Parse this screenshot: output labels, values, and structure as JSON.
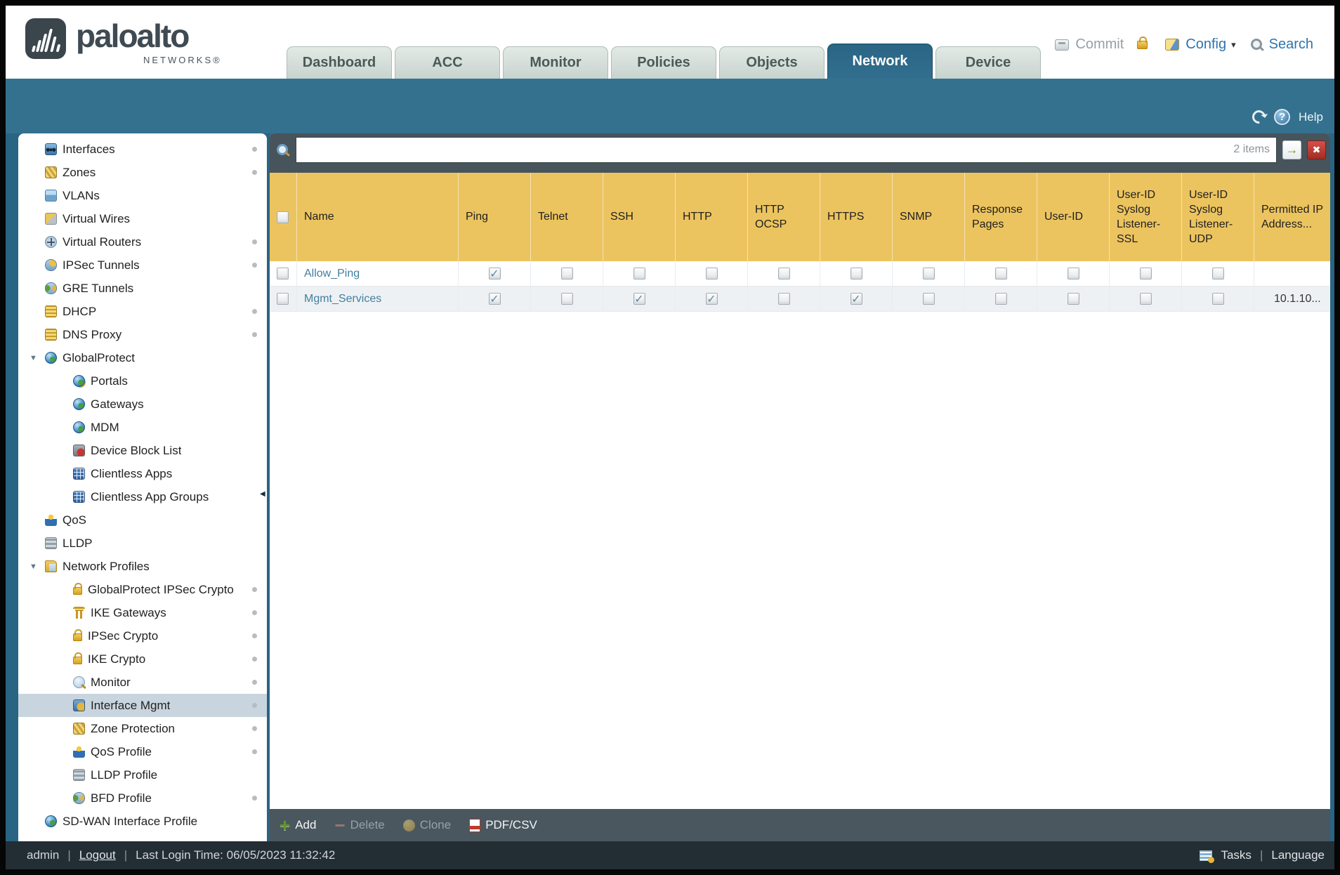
{
  "header": {
    "logo": {
      "brand": "paloalto",
      "sub": "NETWORKS®"
    },
    "tabs": [
      {
        "label": "Dashboard",
        "active": false
      },
      {
        "label": "ACC",
        "active": false
      },
      {
        "label": "Monitor",
        "active": false
      },
      {
        "label": "Policies",
        "active": false
      },
      {
        "label": "Objects",
        "active": false
      },
      {
        "label": "Network",
        "active": true
      },
      {
        "label": "Device",
        "active": false
      }
    ],
    "actions": {
      "commit": "Commit",
      "config": "Config",
      "search": "Search"
    }
  },
  "subheader": {
    "help": "Help"
  },
  "sidebar": {
    "items": [
      {
        "id": "interfaces",
        "label": "Interfaces",
        "icon": "interfaces",
        "level": 0,
        "dot": true
      },
      {
        "id": "zones",
        "label": "Zones",
        "icon": "zones",
        "level": 0,
        "dot": true
      },
      {
        "id": "vlans",
        "label": "VLANs",
        "icon": "vlans",
        "level": 0,
        "dot": false
      },
      {
        "id": "virtual-wires",
        "label": "Virtual Wires",
        "icon": "virtual-wires",
        "level": 0,
        "dot": false
      },
      {
        "id": "virtual-routers",
        "label": "Virtual Routers",
        "icon": "virtual-routers",
        "level": 0,
        "dot": true
      },
      {
        "id": "ipsec-tunnels",
        "label": "IPSec Tunnels",
        "icon": "ipsec-tunnels",
        "level": 0,
        "dot": true
      },
      {
        "id": "gre-tunnels",
        "label": "GRE Tunnels",
        "icon": "gre-tunnels",
        "level": 0,
        "dot": false
      },
      {
        "id": "dhcp",
        "label": "DHCP",
        "icon": "dhcp",
        "level": 0,
        "dot": true
      },
      {
        "id": "dns-proxy",
        "label": "DNS Proxy",
        "icon": "dns-proxy",
        "level": 0,
        "dot": true
      },
      {
        "id": "globalprotect",
        "label": "GlobalProtect",
        "icon": "globalprotect",
        "level": 0,
        "arrow": true,
        "dot": false
      },
      {
        "id": "portals",
        "label": "Portals",
        "icon": "portals",
        "level": 1,
        "dot": false
      },
      {
        "id": "gateways",
        "label": "Gateways",
        "icon": "gateways",
        "level": 1,
        "dot": false
      },
      {
        "id": "mdm",
        "label": "MDM",
        "icon": "mdm",
        "level": 1,
        "dot": false
      },
      {
        "id": "device-block-list",
        "label": "Device Block List",
        "icon": "device-block-list",
        "level": 1,
        "dot": false
      },
      {
        "id": "clientless-apps",
        "label": "Clientless Apps",
        "icon": "clientless-apps",
        "level": 1,
        "dot": false
      },
      {
        "id": "clientless-app-groups",
        "label": "Clientless App Groups",
        "icon": "clientless-app-groups",
        "level": 1,
        "dot": false
      },
      {
        "id": "qos",
        "label": "QoS",
        "icon": "qos",
        "level": 0,
        "dot": false
      },
      {
        "id": "lldp",
        "label": "LLDP",
        "icon": "lldp",
        "level": 0,
        "dot": false
      },
      {
        "id": "network-profiles",
        "label": "Network Profiles",
        "icon": "network-profiles",
        "level": 0,
        "arrow": true,
        "dot": false
      },
      {
        "id": "globalprotect-ipsec-crypto",
        "label": "GlobalProtect IPSec Crypto",
        "icon": "lock",
        "level": 1,
        "dot": true
      },
      {
        "id": "ike-gateways",
        "label": "IKE Gateways",
        "icon": "ike-gateways",
        "level": 1,
        "dot": true
      },
      {
        "id": "ipsec-crypto",
        "label": "IPSec Crypto",
        "icon": "lock",
        "level": 1,
        "dot": true
      },
      {
        "id": "ike-crypto",
        "label": "IKE Crypto",
        "icon": "lock",
        "level": 1,
        "dot": true
      },
      {
        "id": "monitor",
        "label": "Monitor",
        "icon": "monitor",
        "level": 1,
        "dot": true
      },
      {
        "id": "interface-mgmt",
        "label": "Interface Mgmt",
        "icon": "interface-mgmt",
        "level": 1,
        "selected": true,
        "dot": true
      },
      {
        "id": "zone-protection",
        "label": "Zone Protection",
        "icon": "zone-protection",
        "level": 1,
        "dot": true
      },
      {
        "id": "qos-profile",
        "label": "QoS Profile",
        "icon": "qos-profile",
        "level": 1,
        "dot": true
      },
      {
        "id": "lldp-profile",
        "label": "LLDP Profile",
        "icon": "lldp-profile",
        "level": 1,
        "dot": false
      },
      {
        "id": "bfd-profile",
        "label": "BFD Profile",
        "icon": "bfd-profile",
        "level": 1,
        "dot": true
      },
      {
        "id": "sdwan-interface-profile",
        "label": "SD-WAN Interface Profile",
        "icon": "sdwan",
        "level": 0,
        "dot": false
      }
    ]
  },
  "search_bar": {
    "value": "",
    "count": "2 items"
  },
  "table": {
    "columns": [
      {
        "id": "select",
        "label": ""
      },
      {
        "id": "name",
        "label": "Name"
      },
      {
        "id": "ping",
        "label": "Ping"
      },
      {
        "id": "telnet",
        "label": "Telnet"
      },
      {
        "id": "ssh",
        "label": "SSH"
      },
      {
        "id": "http",
        "label": "HTTP"
      },
      {
        "id": "http_ocsp",
        "label": "HTTP OCSP"
      },
      {
        "id": "https",
        "label": "HTTPS"
      },
      {
        "id": "snmp",
        "label": "SNMP"
      },
      {
        "id": "response_pages",
        "label": "Response Pages"
      },
      {
        "id": "user_id",
        "label": "User-ID"
      },
      {
        "id": "uid_ssl",
        "label": "User-ID Syslog Listener-SSL"
      },
      {
        "id": "uid_udp",
        "label": "User-ID Syslog Listener-UDP"
      },
      {
        "id": "permitted_ip",
        "label": "Permitted IP Address..."
      }
    ],
    "rows": [
      {
        "name": "Allow_Ping",
        "checks": {
          "ping": true,
          "telnet": false,
          "ssh": false,
          "http": false,
          "http_ocsp": false,
          "https": false,
          "snmp": false,
          "response_pages": false,
          "user_id": false,
          "uid_ssl": false,
          "uid_udp": false
        },
        "permitted_ip": ""
      },
      {
        "name": "Mgmt_Services",
        "checks": {
          "ping": true,
          "telnet": false,
          "ssh": true,
          "http": true,
          "http_ocsp": false,
          "https": true,
          "snmp": false,
          "response_pages": false,
          "user_id": false,
          "uid_ssl": false,
          "uid_udp": false
        },
        "permitted_ip": "10.1.10..."
      }
    ]
  },
  "toolbar": {
    "add": "Add",
    "delete": "Delete",
    "clone": "Clone",
    "pdfcsv": "PDF/CSV"
  },
  "footer": {
    "user": "admin",
    "logout": "Logout",
    "last_login": "Last Login Time: 06/05/2023 11:32:42",
    "tasks": "Tasks",
    "language": "Language"
  },
  "glyphs": {
    "tree_expanded": "▼",
    "check": "✓",
    "submit": "→",
    "clear": "✖",
    "caret": "▾",
    "help_q": "?",
    "add": "+",
    "delete": "−",
    "pipe": "|",
    "collapse": "◀"
  },
  "colors": {
    "band_blue": "#34718f",
    "active_tab": "#2a6585",
    "table_header_gold": "#ecc45f",
    "link_teal": "#41809e",
    "toolbar_slate": "#47545c",
    "footer_slate": "#232e34"
  }
}
